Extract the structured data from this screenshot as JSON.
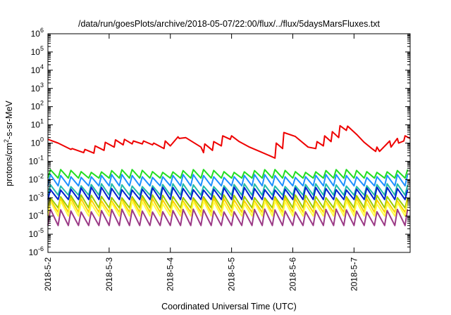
{
  "chart_data": {
    "type": "line",
    "title": "/data/run/goesPlots/archive/2018-05-07/22:00/flux/../flux/5daysMarsFluxes.txt",
    "xlabel": "Coordinated Universal Time (UTC)",
    "ylabel": {
      "pre": "protons/cm",
      "sup": "2",
      "post": "-s-sr-MeV"
    },
    "x_scale": "time",
    "y_scale": "log",
    "xlim": [
      "2018-05-02T00:00",
      "2018-05-07T22:00"
    ],
    "ylim": [
      1e-06,
      1000000.0
    ],
    "x_ticks": [
      {
        "at": "2018-05-02T00:00",
        "label": "2018-5-2"
      },
      {
        "at": "2018-05-03T00:00",
        "label": "2018-5-3"
      },
      {
        "at": "2018-05-04T00:00",
        "label": "2018-5-4"
      },
      {
        "at": "2018-05-05T00:00",
        "label": "2018-5-5"
      },
      {
        "at": "2018-05-06T00:00",
        "label": "2018-5-6"
      },
      {
        "at": "2018-05-07T00:00",
        "label": "2018-5-7"
      }
    ],
    "y_ticks": [
      {
        "value": 1e-06,
        "base": "10",
        "exp": "-6"
      },
      {
        "value": 1e-05,
        "base": "10",
        "exp": "-5"
      },
      {
        "value": 0.0001,
        "base": "10",
        "exp": "-4"
      },
      {
        "value": 0.001,
        "base": "10",
        "exp": "-3"
      },
      {
        "value": 0.01,
        "base": "10",
        "exp": "-2"
      },
      {
        "value": 0.1,
        "base": "10",
        "exp": "-1"
      },
      {
        "value": 1,
        "base": "10",
        "exp": "0"
      },
      {
        "value": 10,
        "base": "10",
        "exp": "1"
      },
      {
        "value": 100,
        "base": "10",
        "exp": "2"
      },
      {
        "value": 1000,
        "base": "10",
        "exp": "3"
      },
      {
        "value": 10000,
        "base": "10",
        "exp": "4"
      },
      {
        "value": 100000,
        "base": "10",
        "exp": "5"
      },
      {
        "value": 1000000,
        "base": "10",
        "exp": "6"
      }
    ],
    "grid": false,
    "legend": "none",
    "series": [
      {
        "color": "#ee0000",
        "x": [
          "2018-05-02T00:00",
          "2018-05-02T04:00",
          "2018-05-02T09:00",
          "2018-05-02T09:30",
          "2018-05-02T14:00",
          "2018-05-02T14:30",
          "2018-05-02T18:00",
          "2018-05-02T18:30",
          "2018-05-02T22:00",
          "2018-05-02T22:30",
          "2018-05-03T02:00",
          "2018-05-03T02:30",
          "2018-05-03T05:30",
          "2018-05-03T06:00",
          "2018-05-03T09:00",
          "2018-05-03T09:30",
          "2018-05-03T13:00",
          "2018-05-03T13:30",
          "2018-05-03T17:00",
          "2018-05-03T17:30",
          "2018-05-03T21:30",
          "2018-05-03T22:00",
          "2018-05-04T00:00",
          "2018-05-04T03:00",
          "2018-05-04T03:30",
          "2018-05-04T06:00",
          "2018-05-04T12:00",
          "2018-05-04T13:00",
          "2018-05-04T13:30",
          "2018-05-04T16:30",
          "2018-05-04T17:00",
          "2018-05-04T20:00",
          "2018-05-04T20:30",
          "2018-05-04T23:30",
          "2018-05-05T00:00",
          "2018-05-05T03:00",
          "2018-05-05T07:00",
          "2018-05-05T11:00",
          "2018-05-05T15:00",
          "2018-05-05T17:00",
          "2018-05-05T17:30",
          "2018-05-05T20:00",
          "2018-05-05T20:30",
          "2018-05-06T01:00",
          "2018-05-06T06:00",
          "2018-05-06T09:00",
          "2018-05-06T09:30",
          "2018-05-06T12:00",
          "2018-05-06T12:30",
          "2018-05-06T15:00",
          "2018-05-06T15:30",
          "2018-05-06T18:00",
          "2018-05-06T18:30",
          "2018-05-06T21:00",
          "2018-05-06T21:30",
          "2018-05-07T01:00",
          "2018-05-07T04:00",
          "2018-05-07T07:00",
          "2018-05-07T08:30",
          "2018-05-07T09:00",
          "2018-05-07T10:00",
          "2018-05-07T14:00",
          "2018-05-07T14:30",
          "2018-05-07T17:00",
          "2018-05-07T17:30",
          "2018-05-07T19:30",
          "2018-05-07T20:00",
          "2018-05-07T22:00"
        ],
        "y": [
          1.6,
          1.0,
          0.45,
          0.5,
          0.3,
          0.45,
          0.28,
          0.7,
          0.4,
          1.1,
          0.6,
          1.5,
          0.8,
          1.6,
          0.9,
          1.3,
          0.9,
          1.3,
          0.8,
          1.0,
          0.5,
          1.3,
          0.7,
          2.2,
          1.8,
          2.0,
          0.6,
          0.3,
          0.9,
          0.4,
          1.2,
          0.7,
          2.5,
          1.6,
          2.5,
          1.2,
          0.6,
          0.35,
          0.2,
          0.15,
          1.0,
          0.5,
          3.8,
          2.3,
          0.6,
          0.5,
          1.2,
          0.7,
          2.5,
          1.2,
          4.2,
          2.0,
          9.0,
          5.0,
          8.5,
          3.0,
          1.1,
          0.5,
          0.35,
          0.6,
          0.35,
          1.3,
          0.6,
          1.8,
          1.0,
          1.3,
          2.5,
          1.8
        ]
      },
      {
        "color": "#22dd22",
        "period_hours": 4,
        "peak": 0.03,
        "trough": 0.012
      },
      {
        "color": "#1e90ff",
        "period_hours": 4,
        "peak": 0.016,
        "trough": 0.0045
      },
      {
        "color": "#22bbaa",
        "period_hours": 4,
        "peak": 0.005,
        "trough": 0.0014
      },
      {
        "color": "#0022cc",
        "period_hours": 4,
        "peak": 0.0032,
        "trough": 0.0008
      },
      {
        "color": "#99cc00",
        "period_hours": 4,
        "peak": 0.0012,
        "trough": 0.00028
      },
      {
        "color": "#ffd000",
        "period_hours": 4,
        "peak": 0.0008,
        "trough": 0.00016
      },
      {
        "color": "#ffff44",
        "period_hours": 4,
        "peak": 0.00055,
        "trough": 0.0001
      },
      {
        "color": "#9b3a86",
        "period_hours": 4,
        "peak": 0.0002,
        "trough": 3e-05
      }
    ]
  }
}
